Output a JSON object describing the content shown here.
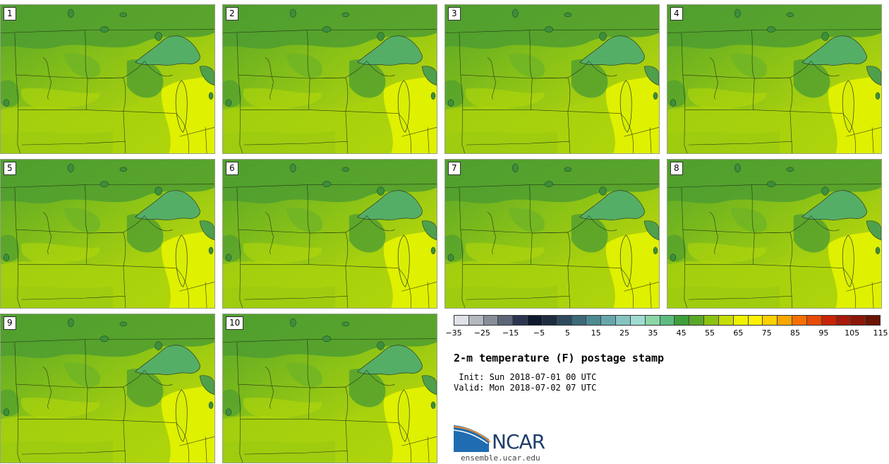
{
  "panels": [
    {
      "label": "1"
    },
    {
      "label": "2"
    },
    {
      "label": "3"
    },
    {
      "label": "4"
    },
    {
      "label": "5"
    },
    {
      "label": "6"
    },
    {
      "label": "7"
    },
    {
      "label": "8"
    },
    {
      "label": "9"
    },
    {
      "label": "10"
    }
  ],
  "colorbar": {
    "colors": [
      "#dfe2e6",
      "#b4b8c0",
      "#878d99",
      "#5c6578",
      "#2b3550",
      "#0f1a30",
      "#1e2c40",
      "#2c4a5c",
      "#3c6a78",
      "#4d8a92",
      "#66a6aa",
      "#86c4c2",
      "#9fdcd2",
      "#8ad6a8",
      "#5cbc80",
      "#3f9e3a",
      "#5aa828",
      "#8cc312",
      "#c6dc08",
      "#eef200",
      "#fef000",
      "#fdd000",
      "#f8a600",
      "#f47000",
      "#e84a08",
      "#c82408",
      "#a81a0c",
      "#8c1608",
      "#6a1404"
    ],
    "ticks": [
      "−35",
      "−25",
      "−15",
      "−5",
      "5",
      "15",
      "25",
      "35",
      "45",
      "55",
      "65",
      "75",
      "85",
      "95",
      "105",
      "115"
    ]
  },
  "title": "2-m temperature (F) postage stamp",
  "init": " Init: Sun 2018-07-01 00 UTC",
  "valid": "Valid: Mon 2018-07-02 07 UTC",
  "logo_text": "NCAR",
  "site": "ensemble.ucar.edu"
}
